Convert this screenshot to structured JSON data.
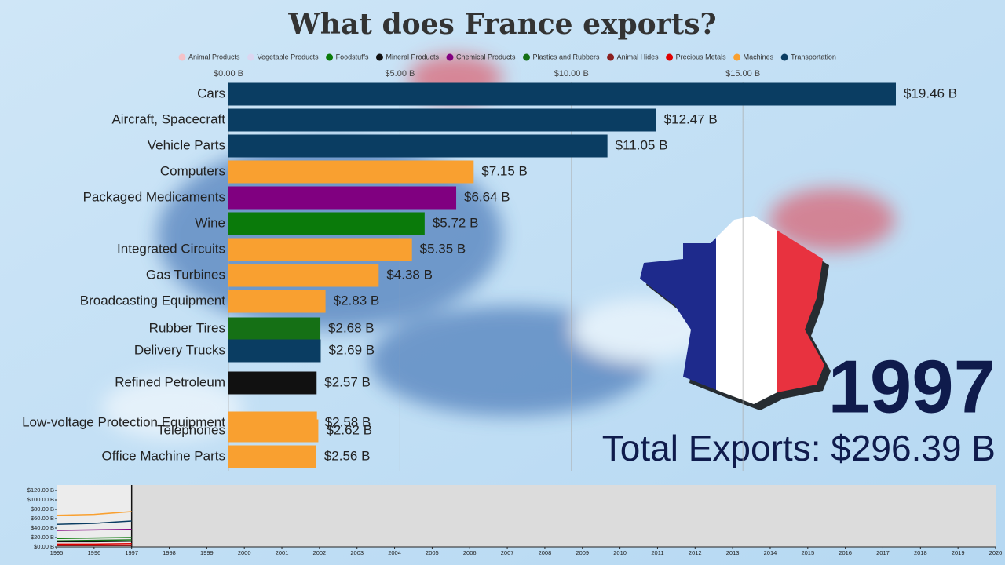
{
  "chart_data": [
    {
      "type": "bar",
      "title": "What does France exports?",
      "legend": [
        {
          "name": "Animal Products",
          "color": "#f4c2c8"
        },
        {
          "name": "Vegetable Products",
          "color": "#dcd6f0"
        },
        {
          "name": "Foodstuffs",
          "color": "#0a7a0a"
        },
        {
          "name": "Mineral Products",
          "color": "#111111"
        },
        {
          "name": "Chemical Products",
          "color": "#800080"
        },
        {
          "name": "Plastics and Rubbers",
          "color": "#157015"
        },
        {
          "name": "Animal Hides",
          "color": "#8b2020"
        },
        {
          "name": "Precious Metals",
          "color": "#e00000"
        },
        {
          "name": "Machines",
          "color": "#f9a030"
        },
        {
          "name": "Transportation",
          "color": "#0a3d62"
        }
      ],
      "categories": [
        "Cars",
        "Aircraft, Spacecraft",
        "Vehicle Parts",
        "Computers",
        "Packaged Medicaments",
        "Wine",
        "Integrated Circuits",
        "Gas Turbines",
        "Broadcasting Equipment",
        "Rubber Tires",
        "Delivery Trucks",
        "Refined Petroleum",
        "Low-voltage Protection Equipment",
        "Telephones",
        "Office Machine Parts"
      ],
      "values": [
        19.46,
        12.47,
        11.05,
        7.15,
        6.64,
        5.72,
        5.35,
        4.38,
        2.83,
        2.68,
        2.69,
        2.57,
        2.58,
        2.62,
        2.56
      ],
      "value_labels": [
        "$19.46 B",
        "$12.47 B",
        "$11.05 B",
        "$7.15 B",
        "$6.64 B",
        "$5.72 B",
        "$5.35 B",
        "$4.38 B",
        "$2.83 B",
        "$2.68 B",
        "$2.69 B",
        "$2.57 B",
        "$2.58 B",
        "$2.62 B",
        "$2.56 B"
      ],
      "colors": [
        "#0a3d62",
        "#0a3d62",
        "#0a3d62",
        "#f9a030",
        "#800080",
        "#0a7a0a",
        "#f9a030",
        "#f9a030",
        "#f9a030",
        "#157015",
        "#0a3d62",
        "#111111",
        "#f9a030",
        "#f9a030",
        "#f9a030"
      ],
      "xlim": [
        0,
        19.46
      ],
      "xticks": [
        {
          "value": 0,
          "label": "$0.00 B"
        },
        {
          "value": 5,
          "label": "$5.00 B"
        },
        {
          "value": 10,
          "label": "$10.00 B"
        },
        {
          "value": 15,
          "label": "$15.00 B"
        }
      ],
      "grid": true,
      "year": "1997",
      "total": "Total Exports: $296.39 B"
    },
    {
      "type": "line",
      "x": [
        1995,
        1996,
        1997
      ],
      "series": [
        {
          "color": "#f9a030",
          "values": [
            67,
            69,
            75
          ]
        },
        {
          "color": "#0a3d62",
          "values": [
            48,
            50,
            55
          ]
        },
        {
          "color": "#800080",
          "values": [
            35,
            36,
            37
          ]
        },
        {
          "color": "#0a7a0a",
          "values": [
            18,
            19,
            20
          ]
        },
        {
          "color": "#157015",
          "values": [
            13,
            14,
            15
          ]
        },
        {
          "color": "#111111",
          "values": [
            11,
            11,
            12
          ]
        },
        {
          "color": "#e00000",
          "values": [
            6,
            6,
            7
          ]
        },
        {
          "color": "#8b2020",
          "values": [
            3,
            3,
            3
          ]
        }
      ],
      "xlim": [
        1995,
        2020
      ],
      "xticks": [
        1995,
        1996,
        1997,
        1998,
        1999,
        2000,
        2001,
        2002,
        2003,
        2004,
        2005,
        2006,
        2007,
        2008,
        2009,
        2010,
        2011,
        2012,
        2013,
        2014,
        2015,
        2016,
        2017,
        2018,
        2019,
        2020
      ],
      "ylim": [
        0,
        120
      ],
      "yticks": [
        {
          "value": 0,
          "label": "$0.00 B"
        },
        {
          "value": 20,
          "label": "$20.00 B"
        },
        {
          "value": 40,
          "label": "$40.00 B"
        },
        {
          "value": 60,
          "label": "$60.00 B"
        },
        {
          "value": 80,
          "label": "$80.00 B"
        },
        {
          "value": 100,
          "label": "$100.00 B"
        },
        {
          "value": 120,
          "label": "$120.00 B"
        }
      ]
    }
  ]
}
